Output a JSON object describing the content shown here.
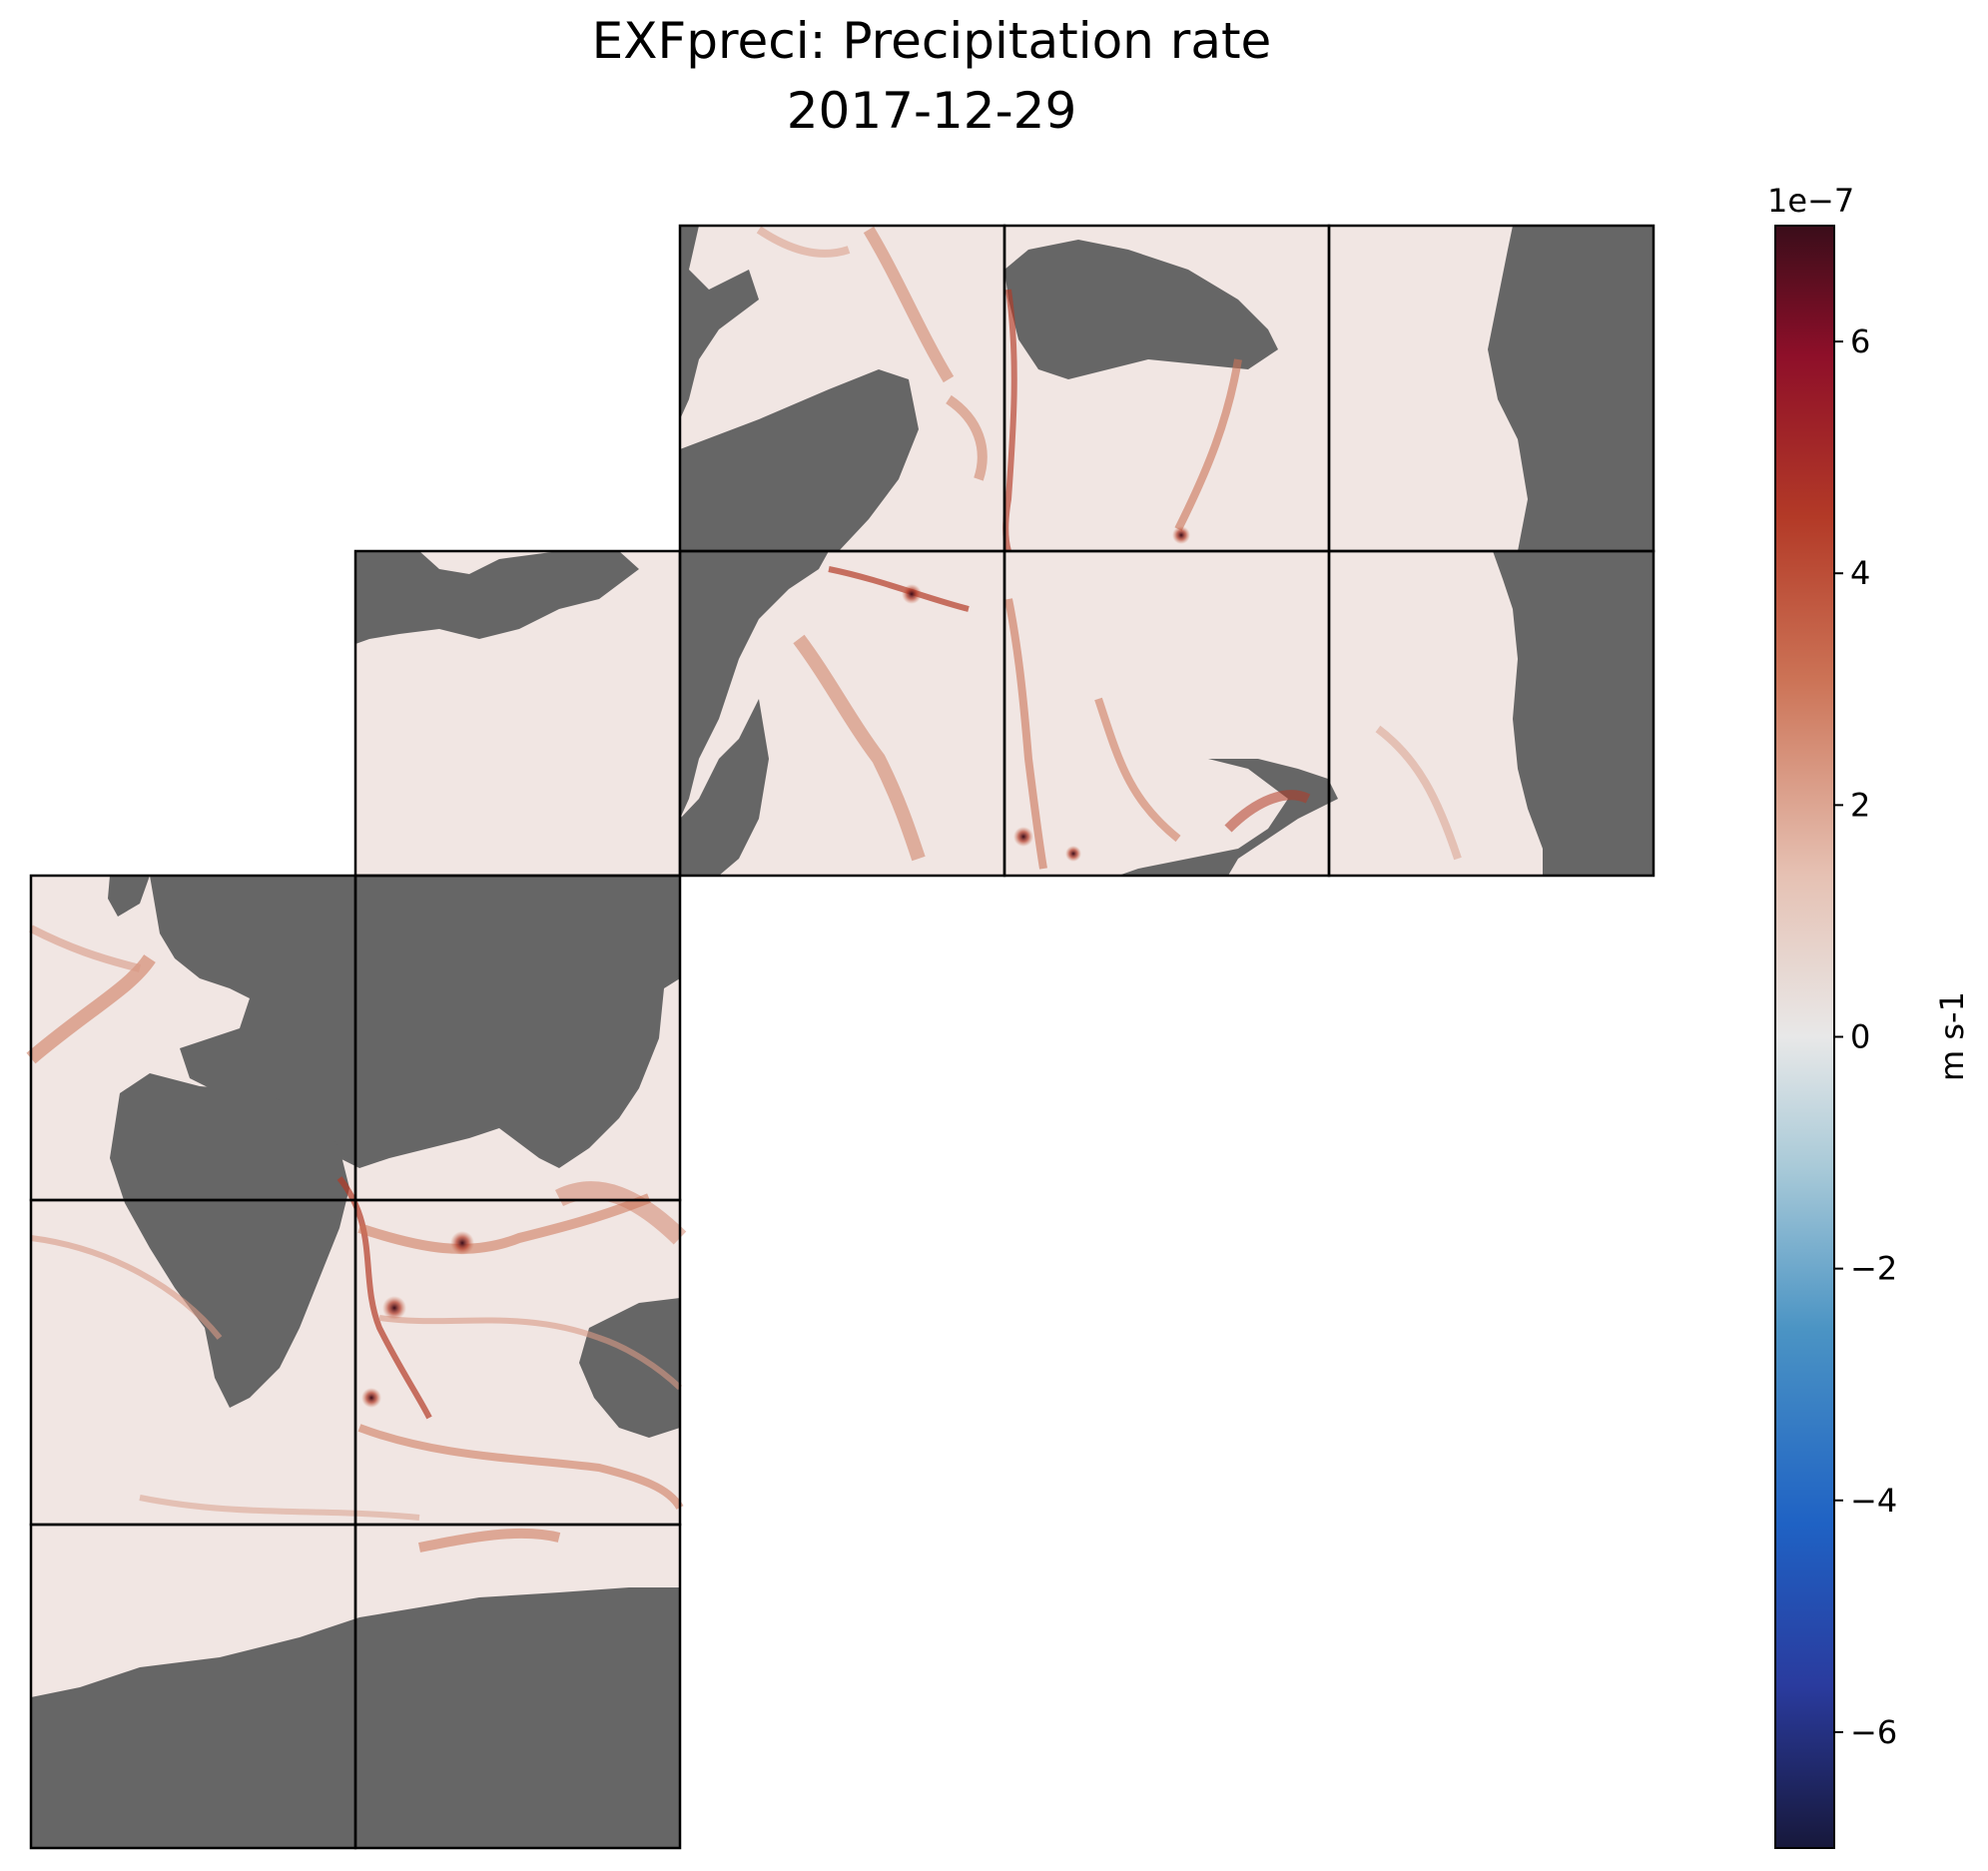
{
  "chart_data": {
    "type": "heatmap",
    "title": "EXFpreci: Precipitation rate",
    "subtitle": "2017-12-29",
    "colorbar": {
      "label": "m s-1",
      "multiplier": "1e−7",
      "range": [
        -7,
        7
      ],
      "ticks": [
        6,
        4,
        2,
        0,
        -2,
        -4,
        -6
      ],
      "tick_labels": [
        "6",
        "4",
        "2",
        "0",
        "−2",
        "−4",
        "−6"
      ],
      "colormap": [
        "#17183b",
        "#2a3b9e",
        "#1f62c4",
        "#4b94c4",
        "#a9cad8",
        "#e8e8e8",
        "#e6c1b3",
        "#cc7356",
        "#b33a27",
        "#8e0f29",
        "#3a0d1a"
      ],
      "land_color": "#666666"
    },
    "grid": "faceted",
    "note": "Map of ocean precipitation rate on cube-sphere faces (values mostly between 0 and 7e-7 m s-1)."
  }
}
